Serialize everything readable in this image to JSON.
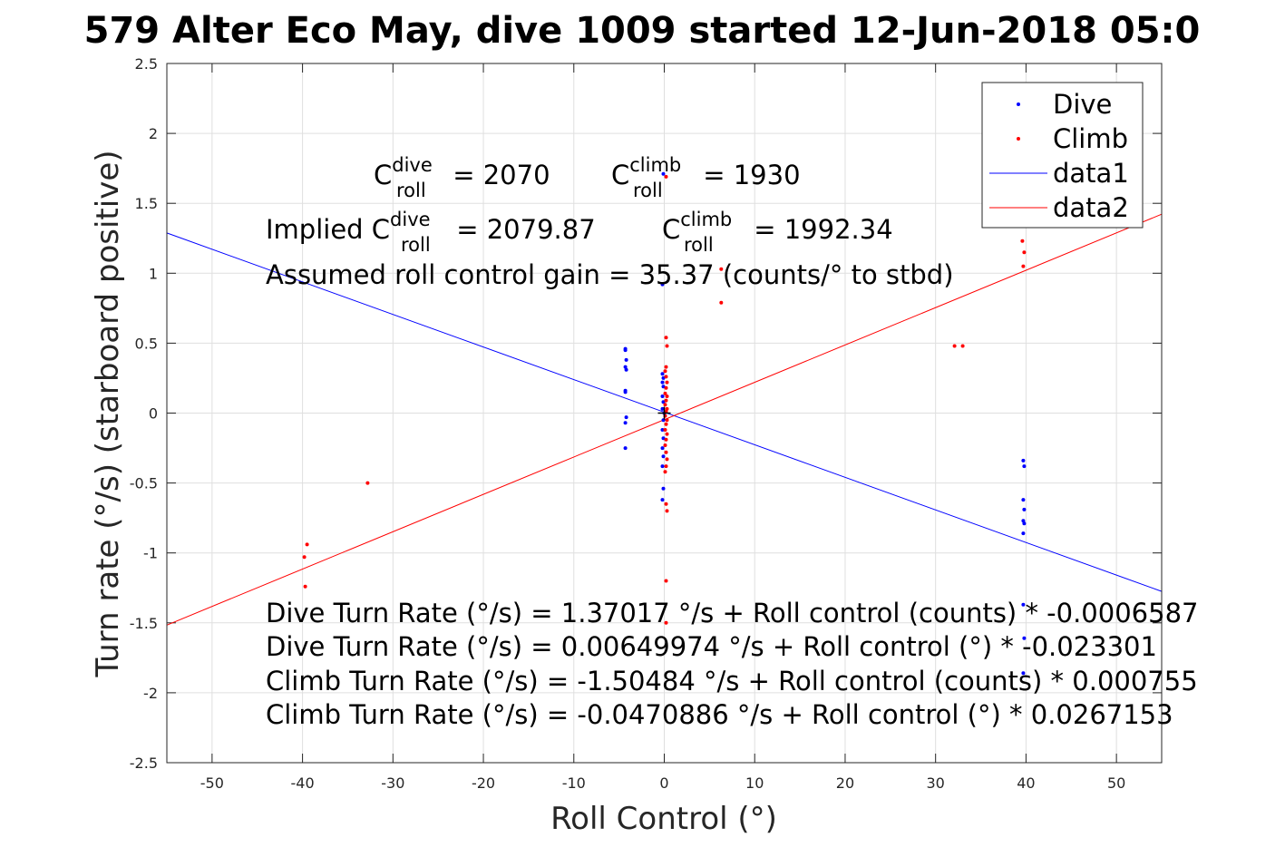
{
  "chart_data": {
    "type": "scatter",
    "title": "579 Alter Eco May, dive 1009 started 12-Jun-2018 05:0",
    "xlabel": "Roll Control (°)",
    "ylabel": "Turn rate (°/s) (starboard positive)",
    "xlim": [
      -55,
      55
    ],
    "ylim": [
      -2.5,
      2.5
    ],
    "xticks": [
      "-50",
      "-40",
      "-30",
      "-20",
      "-10",
      "0",
      "10",
      "20",
      "30",
      "40",
      "50"
    ],
    "yticks": [
      "-2.5",
      "-2",
      "-1.5",
      "-1",
      "-0.5",
      "0",
      "0.5",
      "1",
      "1.5",
      "2",
      "2.5"
    ],
    "grid": true,
    "legend_position": "top-right",
    "series": [
      {
        "name": "Dive",
        "kind": "points",
        "color": "#0000ff",
        "points": [
          [
            -4.3,
            0.46
          ],
          [
            -4.3,
            0.45
          ],
          [
            -4.2,
            0.38
          ],
          [
            -4.3,
            0.33
          ],
          [
            -4.2,
            0.31
          ],
          [
            -4.3,
            0.16
          ],
          [
            -4.3,
            0.15
          ],
          [
            -4.2,
            -0.03
          ],
          [
            -4.3,
            -0.07
          ],
          [
            -4.3,
            -0.25
          ],
          [
            -0.1,
            1.71
          ],
          [
            -0.2,
            0.92
          ],
          [
            -0.2,
            0.28
          ],
          [
            -0.1,
            0.25
          ],
          [
            -0.2,
            0.22
          ],
          [
            -0.1,
            0.19
          ],
          [
            -0.2,
            0.12
          ],
          [
            -0.1,
            0.08
          ],
          [
            -0.2,
            0.03
          ],
          [
            0.0,
            0.0
          ],
          [
            -0.1,
            -0.05
          ],
          [
            -0.2,
            -0.12
          ],
          [
            -0.1,
            -0.18
          ],
          [
            -0.2,
            -0.25
          ],
          [
            -0.1,
            -0.31
          ],
          [
            -0.2,
            -0.38
          ],
          [
            -0.1,
            -0.54
          ],
          [
            -0.2,
            -0.62
          ],
          [
            39.7,
            -0.34
          ],
          [
            39.8,
            -0.38
          ],
          [
            39.7,
            -0.62
          ],
          [
            39.8,
            -0.69
          ],
          [
            39.7,
            -0.77
          ],
          [
            39.8,
            -0.79
          ],
          [
            39.7,
            -0.86
          ],
          [
            39.7,
            -1.37
          ],
          [
            39.8,
            -1.61
          ],
          [
            39.7,
            -1.86
          ]
        ]
      },
      {
        "name": "Climb",
        "kind": "points",
        "color": "#ff0000",
        "points": [
          [
            -39.7,
            -1.24
          ],
          [
            -39.8,
            -1.03
          ],
          [
            -39.5,
            -0.94
          ],
          [
            -32.8,
            -0.5
          ],
          [
            0.2,
            1.69
          ],
          [
            0.2,
            0.54
          ],
          [
            0.3,
            0.48
          ],
          [
            0.2,
            0.33
          ],
          [
            0.1,
            0.3
          ],
          [
            0.2,
            0.26
          ],
          [
            0.3,
            0.22
          ],
          [
            0.2,
            0.18
          ],
          [
            0.1,
            0.14
          ],
          [
            0.3,
            0.12
          ],
          [
            0.2,
            0.09
          ],
          [
            0.1,
            0.06
          ],
          [
            0.3,
            0.03
          ],
          [
            0.2,
            0.01
          ],
          [
            0.1,
            -0.02
          ],
          [
            0.3,
            -0.05
          ],
          [
            0.2,
            -0.08
          ],
          [
            0.1,
            -0.12
          ],
          [
            0.3,
            -0.15
          ],
          [
            0.2,
            -0.19
          ],
          [
            0.1,
            -0.23
          ],
          [
            0.2,
            -0.28
          ],
          [
            0.3,
            -0.33
          ],
          [
            0.2,
            -0.38
          ],
          [
            0.1,
            -0.42
          ],
          [
            0.2,
            -0.65
          ],
          [
            0.3,
            -0.7
          ],
          [
            0.2,
            -1.2
          ],
          [
            0.2,
            -1.5
          ],
          [
            6.3,
            1.03
          ],
          [
            6.3,
            0.79
          ],
          [
            32.1,
            0.48
          ],
          [
            33.0,
            0.48
          ],
          [
            39.6,
            1.23
          ],
          [
            39.8,
            1.15
          ],
          [
            39.7,
            1.05
          ]
        ]
      },
      {
        "name": "data1",
        "kind": "line",
        "color": "#0000ff",
        "points": [
          [
            -55,
            1.288
          ],
          [
            55,
            -1.275
          ]
        ]
      },
      {
        "name": "data2",
        "kind": "line",
        "color": "#ff0000",
        "points": [
          [
            -55,
            -1.516
          ],
          [
            55,
            1.422
          ]
        ]
      }
    ],
    "annotations": {
      "c_dive": {
        "c": "C",
        "sup": "dive",
        "sub": "roll",
        "rest": " = 2070"
      },
      "c_climb": {
        "c": "C",
        "sup": "climb",
        "sub": "roll",
        "rest": " = 1930"
      },
      "implied_dive": {
        "prefix": "Implied ",
        "c": "C",
        "sup": "dive",
        "sub": "roll",
        "rest": " = 2079.87"
      },
      "implied_climb": {
        "c": "C",
        "sup": "climb",
        "sub": "roll",
        "rest": " = 1992.34"
      },
      "gain": "Assumed roll control gain = 35.37 (counts/° to stbd)",
      "eq1": "Dive Turn Rate (°/s) = 1.37017 °/s + Roll control (counts) * -0.0006587",
      "eq2": "Dive Turn Rate (°/s) = 0.00649974 °/s + Roll control (°) * -0.023301",
      "eq3": "Climb Turn Rate (°/s) = -1.50484 °/s + Roll control (counts) * 0.000755",
      "eq4": "Climb Turn Rate (°/s) = -0.0470886 °/s + Roll control (°) * 0.0267153"
    }
  }
}
